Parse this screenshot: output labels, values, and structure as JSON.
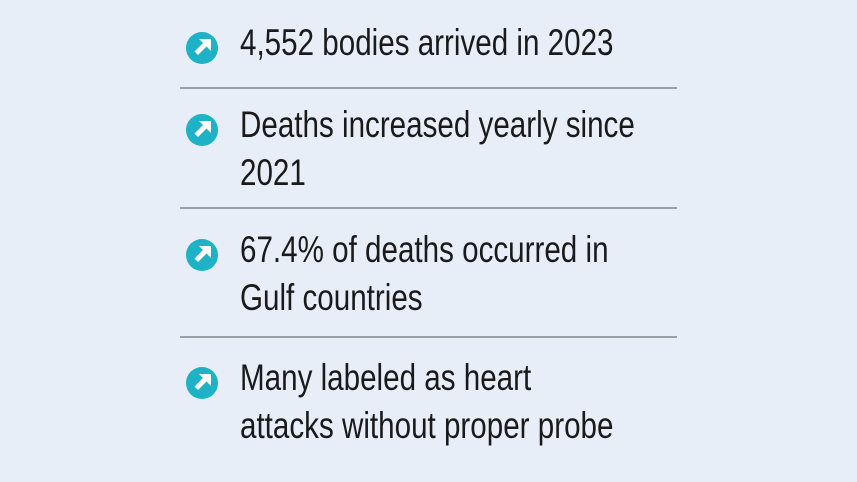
{
  "items": [
    {
      "lines": [
        "4,552 bodies arrived in 2023"
      ]
    },
    {
      "lines": [
        "Deaths increased yearly since",
        "2021"
      ]
    },
    {
      "lines": [
        "67.4% of deaths occurred in",
        "Gulf countries"
      ]
    },
    {
      "lines": [
        "Many labeled as heart",
        "attacks without proper probe"
      ]
    }
  ]
}
